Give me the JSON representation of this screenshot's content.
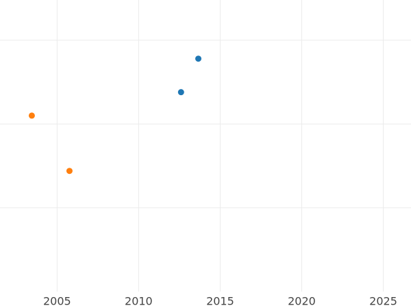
{
  "chart_data": {
    "type": "scatter",
    "series": [
      {
        "color": "#1f77b4",
        "x": [
          2013.66,
          2012.6
        ],
        "values": [
          2.78,
          2.38
        ]
      },
      {
        "color": "#ff7f0e",
        "x": [
          2003.45,
          2005.76
        ],
        "values": [
          2.1,
          1.44
        ]
      }
    ],
    "xlim": [
      2001.5,
      2026.7
    ],
    "xticks": [
      2005,
      2010,
      2015,
      2020,
      2025
    ],
    "ylim": [
      0,
      3.48
    ],
    "yticks": [
      1,
      2,
      3
    ],
    "grid": true
  }
}
